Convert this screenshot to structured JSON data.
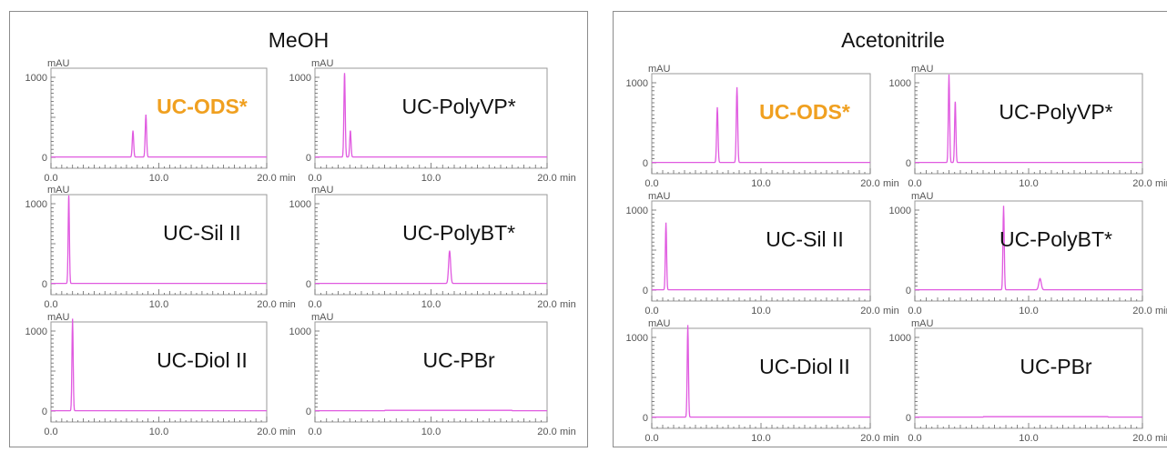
{
  "colors": {
    "trace": "#e05ae0",
    "highlight": "#f0a020",
    "frame": "#8c8c8c"
  },
  "panels": [
    {
      "title": "MeOH",
      "chart_data": [
        {
          "type": "line",
          "title": "UC-ODS*",
          "highlight": true,
          "ylabel": "mAU",
          "xunit": "min",
          "xlim": [
            0,
            20
          ],
          "ylim": [
            0,
            1000
          ],
          "yticks": [
            "1000",
            "0"
          ],
          "xticks": [
            "0.0",
            "10.0",
            "20.0"
          ],
          "peaks": [
            {
              "x": 7.6,
              "height": 330,
              "width": 0.09
            },
            {
              "x": 8.8,
              "height": 530,
              "width": 0.09
            }
          ]
        },
        {
          "type": "line",
          "title": "UC-PolyVP*",
          "highlight": false,
          "ylabel": "mAU",
          "xunit": "min",
          "xlim": [
            0,
            20
          ],
          "ylim": [
            0,
            1000
          ],
          "yticks": [
            "1000",
            "0"
          ],
          "xticks": [
            "0.0",
            "10.0",
            "20.0"
          ],
          "peaks": [
            {
              "x": 2.55,
              "height": 1050,
              "width": 0.08
            },
            {
              "x": 3.05,
              "height": 330,
              "width": 0.08
            }
          ]
        },
        {
          "type": "line",
          "title": "UC-Sil II",
          "highlight": false,
          "ylabel": "mAU",
          "xunit": "min",
          "xlim": [
            0,
            20
          ],
          "ylim": [
            0,
            1000
          ],
          "yticks": [
            "1000",
            "0"
          ],
          "xticks": [
            "0.0",
            "10.0",
            "20.0"
          ],
          "peaks": [
            {
              "x": 1.65,
              "height": 1100,
              "width": 0.08
            }
          ]
        },
        {
          "type": "line",
          "title": "UC-PolyBT*",
          "highlight": false,
          "ylabel": "mAU",
          "xunit": "min",
          "xlim": [
            0,
            20
          ],
          "ylim": [
            0,
            1000
          ],
          "yticks": [
            "1000",
            "0"
          ],
          "xticks": [
            "0.0",
            "10.0",
            "20.0"
          ],
          "peaks": [
            {
              "x": 11.6,
              "height": 410,
              "width": 0.12
            }
          ]
        },
        {
          "type": "line",
          "title": "UC-Diol II",
          "highlight": false,
          "ylabel": "mAU",
          "xunit": "min",
          "xlim": [
            0,
            20
          ],
          "ylim": [
            0,
            1000
          ],
          "yticks": [
            "1000",
            "0"
          ],
          "xticks": [
            "0.0",
            "10.0",
            "20.0"
          ],
          "peaks": [
            {
              "x": 2.0,
              "height": 1150,
              "width": 0.08
            }
          ]
        },
        {
          "type": "line",
          "title": "UC-PBr",
          "highlight": false,
          "ylabel": "mAU",
          "xunit": "min",
          "xlim": [
            0,
            20
          ],
          "ylim": [
            0,
            1000
          ],
          "yticks": [
            "1000",
            "0"
          ],
          "xticks": [
            "0.0",
            "10.0",
            "20.0"
          ],
          "peaks": []
        }
      ]
    },
    {
      "title": "Acetonitrile",
      "chart_data": [
        {
          "type": "line",
          "title": "UC-ODS*",
          "highlight": true,
          "ylabel": "mAU",
          "xunit": "min",
          "xlim": [
            0,
            20
          ],
          "ylim": [
            0,
            1000
          ],
          "yticks": [
            "1000",
            "0"
          ],
          "xticks": [
            "0.0",
            "10.0",
            "20.0"
          ],
          "peaks": [
            {
              "x": 6.0,
              "height": 690,
              "width": 0.09
            },
            {
              "x": 7.8,
              "height": 940,
              "width": 0.09
            }
          ]
        },
        {
          "type": "line",
          "title": "UC-PolyVP*",
          "highlight": false,
          "ylabel": "mAU",
          "xunit": "min",
          "xlim": [
            0,
            20
          ],
          "ylim": [
            0,
            1000
          ],
          "yticks": [
            "1000",
            "0"
          ],
          "xticks": [
            "0.0",
            "10.0",
            "20.0"
          ],
          "peaks": [
            {
              "x": 3.0,
              "height": 1100,
              "width": 0.08
            },
            {
              "x": 3.55,
              "height": 760,
              "width": 0.08
            }
          ]
        },
        {
          "type": "line",
          "title": "UC-Sil II",
          "highlight": false,
          "ylabel": "mAU",
          "xunit": "min",
          "xlim": [
            0,
            20
          ],
          "ylim": [
            0,
            1000
          ],
          "yticks": [
            "1000",
            "0"
          ],
          "xticks": [
            "0.0",
            "10.0",
            "20.0"
          ],
          "peaks": [
            {
              "x": 1.3,
              "height": 840,
              "width": 0.08
            }
          ]
        },
        {
          "type": "line",
          "title": "UC-PolyBT*",
          "highlight": false,
          "ylabel": "mAU",
          "xunit": "min",
          "xlim": [
            0,
            20
          ],
          "ylim": [
            0,
            1000
          ],
          "yticks": [
            "1000",
            "0"
          ],
          "xticks": [
            "0.0",
            "10.0",
            "20.0"
          ],
          "peaks": [
            {
              "x": 7.8,
              "height": 1050,
              "width": 0.08
            },
            {
              "x": 11.0,
              "height": 140,
              "width": 0.15
            }
          ]
        },
        {
          "type": "line",
          "title": "UC-Diol II",
          "highlight": false,
          "ylabel": "mAU",
          "xunit": "min",
          "xlim": [
            0,
            20
          ],
          "ylim": [
            0,
            1000
          ],
          "yticks": [
            "1000",
            "0"
          ],
          "xticks": [
            "0.0",
            "10.0",
            "20.0"
          ],
          "peaks": [
            {
              "x": 3.3,
              "height": 1150,
              "width": 0.08
            }
          ]
        },
        {
          "type": "line",
          "title": "UC-PBr",
          "highlight": false,
          "ylabel": "mAU",
          "xunit": "min",
          "xlim": [
            0,
            20
          ],
          "ylim": [
            0,
            1000
          ],
          "yticks": [
            "1000",
            "0"
          ],
          "xticks": [
            "0.0",
            "10.0",
            "20.0"
          ],
          "peaks": []
        }
      ]
    }
  ]
}
